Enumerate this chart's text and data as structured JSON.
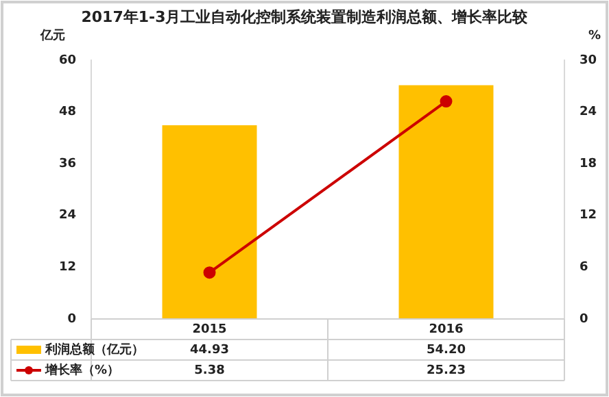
{
  "chart_data": {
    "type": "bar",
    "title": "2017年1-3月工业自动化控制系统装置制造利润总额、增长率比较",
    "ylabel": "亿元",
    "y2label": "%",
    "categories": [
      "2015",
      "2016"
    ],
    "series": [
      {
        "name": "利润总额（亿元）",
        "color": "#ffc000",
        "values": [
          44.93,
          54.2
        ],
        "value_labels": [
          "44.93",
          "54.20"
        ]
      },
      {
        "name": "增长率（%）",
        "type": "line",
        "axis": "y2",
        "color": "#cc0000",
        "marker": "circle",
        "values": [
          5.38,
          25.23
        ],
        "value_labels": [
          "5.38",
          "25.23"
        ]
      }
    ],
    "ylim": [
      0,
      60
    ],
    "yticks": [
      0,
      12,
      24,
      36,
      48,
      60
    ],
    "y2lim": [
      0,
      30
    ],
    "y2ticks": [
      0,
      6,
      12,
      18,
      24,
      30
    ],
    "grid": false,
    "legend": "bottom left"
  }
}
